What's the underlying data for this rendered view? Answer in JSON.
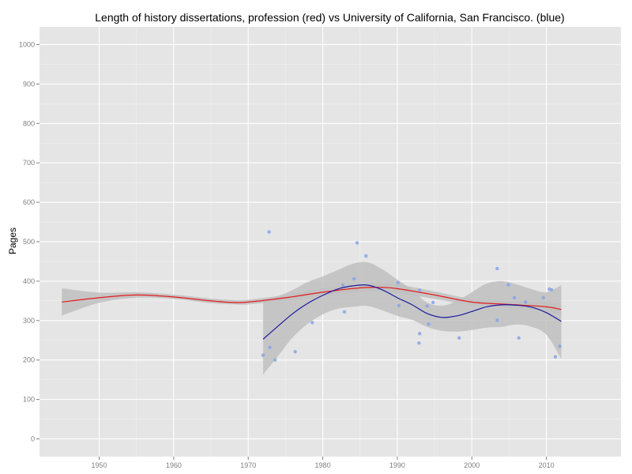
{
  "chart_data": {
    "type": "scatter",
    "title": "Length of history dissertations, profession (red) vs University of California, San Francisco. (blue)",
    "xlabel": "",
    "ylabel": "Pages",
    "xlim": [
      1942,
      2020
    ],
    "ylim": [
      -45,
      1045
    ],
    "x_ticks": [
      1950,
      1960,
      1970,
      1980,
      1990,
      2000,
      2010
    ],
    "y_ticks": [
      0,
      100,
      200,
      300,
      400,
      500,
      600,
      700,
      800,
      900,
      1000
    ],
    "grid": true,
    "colors": {
      "panel": "#e5e5e5",
      "grid": "#ffffff",
      "points": "#86a3e6",
      "profession_line": "#e41a1c",
      "ucsf_line": "#1a1aa0",
      "ribbon": "#c0c0c0"
    },
    "points": [
      {
        "x": 1972.0,
        "y": 212
      },
      {
        "x": 1972.8,
        "y": 525
      },
      {
        "x": 1972.9,
        "y": 232
      },
      {
        "x": 1973.6,
        "y": 200
      },
      {
        "x": 1976.3,
        "y": 221
      },
      {
        "x": 1978.6,
        "y": 295
      },
      {
        "x": 1982.7,
        "y": 390
      },
      {
        "x": 1982.9,
        "y": 322
      },
      {
        "x": 1984.2,
        "y": 406
      },
      {
        "x": 1984.6,
        "y": 497
      },
      {
        "x": 1985.8,
        "y": 464
      },
      {
        "x": 1990.1,
        "y": 396
      },
      {
        "x": 1990.2,
        "y": 338
      },
      {
        "x": 1992.9,
        "y": 243
      },
      {
        "x": 1993.0,
        "y": 267
      },
      {
        "x": 1993.0,
        "y": 377
      },
      {
        "x": 1994.0,
        "y": 337
      },
      {
        "x": 1994.2,
        "y": 291
      },
      {
        "x": 1994.8,
        "y": 346
      },
      {
        "x": 1998.3,
        "y": 256
      },
      {
        "x": 2003.4,
        "y": 432
      },
      {
        "x": 2003.4,
        "y": 301
      },
      {
        "x": 2004.9,
        "y": 391
      },
      {
        "x": 2005.7,
        "y": 358
      },
      {
        "x": 2006.3,
        "y": 256
      },
      {
        "x": 2007.2,
        "y": 347
      },
      {
        "x": 2009.6,
        "y": 358
      },
      {
        "x": 2010.4,
        "y": 380
      },
      {
        "x": 2010.7,
        "y": 378
      },
      {
        "x": 2011.2,
        "y": 208
      },
      {
        "x": 2011.8,
        "y": 235
      }
    ],
    "series": [
      {
        "x": [
          1945,
          1950,
          1955,
          1960,
          1965,
          1968,
          1970,
          1975,
          1980,
          1985,
          1988,
          1990,
          1995,
          2000,
          2005,
          2010,
          2012
        ],
        "values": [
          347,
          358,
          365,
          360,
          350,
          346,
          347,
          358,
          372,
          383,
          384,
          381,
          365,
          347,
          341,
          335,
          328
        ],
        "ribbon_lower": [
          313,
          345,
          358,
          355,
          344,
          341,
          341,
          351,
          363,
          373,
          374,
          370,
          355,
          339,
          333,
          322,
          314
        ],
        "ribbon_upper": [
          382,
          371,
          372,
          366,
          356,
          352,
          353,
          365,
          381,
          392,
          394,
          392,
          374,
          355,
          349,
          347,
          342
        ]
      },
      {
        "x": [
          1972,
          1974,
          1976,
          1978,
          1980,
          1982,
          1984,
          1986,
          1988,
          1990,
          1992,
          1994,
          1996,
          1998,
          2000,
          2002,
          2004,
          2006,
          2008,
          2010,
          2012
        ],
        "values": [
          253,
          286,
          318,
          344,
          364,
          380,
          388,
          390,
          378,
          358,
          340,
          318,
          308,
          312,
          323,
          335,
          340,
          339,
          334,
          320,
          298
        ],
        "ribbon_lower": [
          163,
          210,
          258,
          292,
          316,
          330,
          335,
          337,
          326,
          312,
          302,
          284,
          274,
          272,
          276,
          282,
          284,
          290,
          284,
          264,
          202
        ],
        "ribbon_upper": [
          353,
          362,
          378,
          398,
          412,
          428,
          444,
          448,
          430,
          404,
          378,
          346,
          338,
          350,
          372,
          394,
          400,
          392,
          380,
          372,
          390
        ]
      }
    ]
  }
}
